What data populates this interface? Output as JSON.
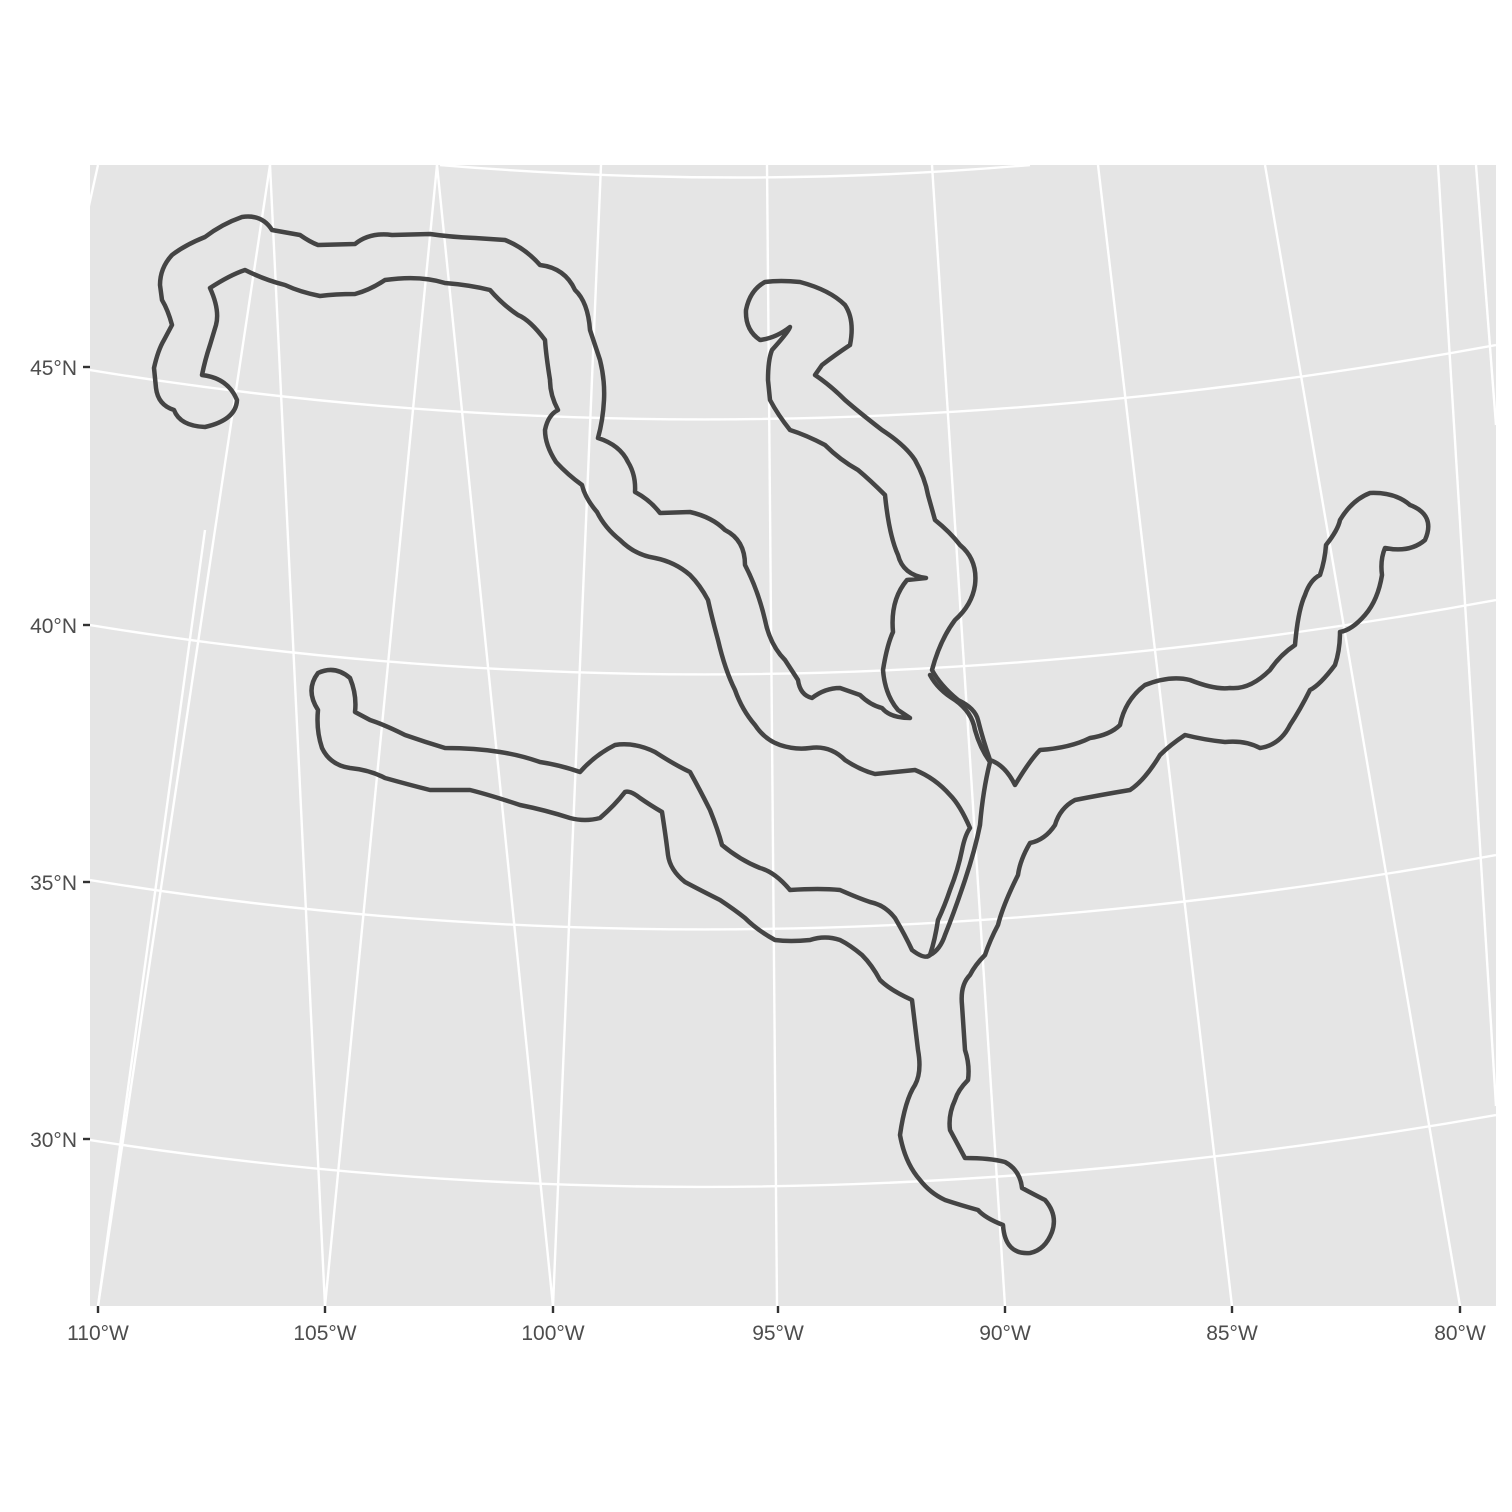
{
  "map": {
    "y_axis_labels": [
      "45°N",
      "40°N",
      "35°N",
      "30°N"
    ],
    "x_axis_labels": [
      "110°W",
      "105°W",
      "100°W",
      "95°W",
      "90°W",
      "85°W",
      "80°W"
    ],
    "colors": {
      "panel_background": "#e5e5e5",
      "graticule": "#ffffff",
      "buffer_outline": "#444444",
      "axis_text": "#4d4d4d"
    }
  }
}
